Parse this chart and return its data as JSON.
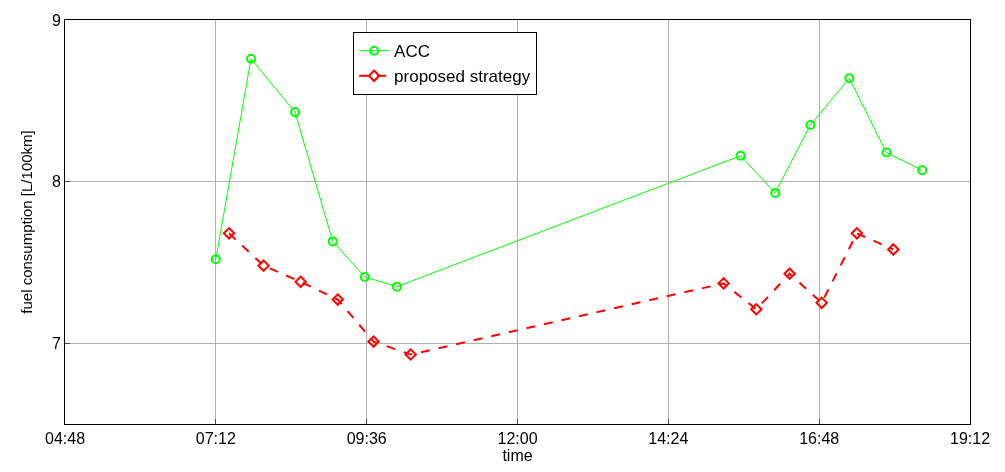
{
  "chart_data": {
    "type": "line",
    "xlabel": "time",
    "ylabel": "fuel consumption [L/100km]",
    "xlim": [
      4.8,
      19.2
    ],
    "xticks": [
      {
        "value": 4.8,
        "label": "04:48"
      },
      {
        "value": 7.2,
        "label": "07:12"
      },
      {
        "value": 9.6,
        "label": "09:36"
      },
      {
        "value": 12,
        "label": "12:00"
      },
      {
        "value": 14.4,
        "label": "14:24"
      },
      {
        "value": 16.8,
        "label": "16:48"
      },
      {
        "value": 19.2,
        "label": "19:12"
      }
    ],
    "ylim": [
      6.5,
      9
    ],
    "yticks": [
      7,
      8,
      9
    ],
    "grid": true,
    "legend": "top",
    "series": [
      {
        "name": "ACC",
        "color": "#00ff00",
        "marker": "circle",
        "line_style": "solid",
        "x": [
          7.2,
          7.76,
          8.46,
          9.06,
          9.57,
          10.08,
          15.55,
          16.1,
          16.66,
          17.28,
          17.87,
          18.44
        ],
        "values": [
          7.52,
          8.76,
          8.43,
          7.63,
          7.41,
          7.35,
          8.16,
          7.93,
          8.35,
          8.64,
          8.18,
          8.07
        ]
      },
      {
        "name": "proposed strategy",
        "color": "#ff0000",
        "marker": "diamond",
        "line_style": "dashed",
        "x": [
          7.41,
          7.96,
          8.55,
          9.14,
          9.71,
          10.3,
          15.28,
          15.8,
          16.33,
          16.84,
          17.4,
          17.98
        ],
        "values": [
          7.68,
          7.48,
          7.38,
          7.27,
          7.01,
          6.93,
          7.37,
          7.21,
          7.43,
          7.25,
          7.68,
          7.58
        ]
      }
    ]
  }
}
